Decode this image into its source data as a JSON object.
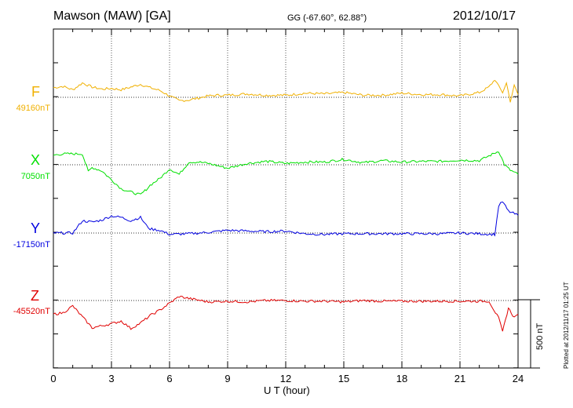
{
  "header": {
    "station": "Mawson (MAW)  [GA]",
    "coords": "GG (-67.60°,  62.88°)",
    "date": "2012/10/17"
  },
  "footer": {
    "plotted": "Plotted at 2012/11/17 01:25 UT",
    "scale": "500 nT"
  },
  "chart_data": {
    "type": "line",
    "xlabel": "U T (hour)",
    "xlim": [
      0,
      24
    ],
    "xticks": [
      "0",
      "3",
      "6",
      "9",
      "12",
      "15",
      "18",
      "21",
      "24"
    ],
    "grid": true,
    "scale_bar_nT": 500,
    "series": [
      {
        "name": "F",
        "baseline_label": "49160nT",
        "color": "#f0b000",
        "x": [
          0,
          0.5,
          1,
          1.5,
          2,
          2.5,
          3,
          3.5,
          4,
          4.5,
          5,
          5.5,
          6,
          6.5,
          7,
          7.5,
          8,
          8.5,
          9,
          10,
          11,
          12,
          13,
          14,
          15,
          16,
          17,
          18,
          19,
          20,
          21,
          22,
          22.5,
          22.8,
          23,
          23.2,
          23.4,
          23.6,
          23.8,
          24
        ],
        "y": [
          70,
          80,
          55,
          105,
          75,
          60,
          65,
          55,
          75,
          95,
          70,
          50,
          10,
          -25,
          -20,
          -5,
          10,
          15,
          15,
          25,
          15,
          15,
          30,
          25,
          35,
          15,
          15,
          30,
          20,
          20,
          10,
          35,
          75,
          130,
          80,
          35,
          105,
          -30,
          85,
          20
        ],
        "min_value": -30
      },
      {
        "name": "X",
        "baseline_label": "7050nT",
        "color": "#00e000",
        "x": [
          0,
          0.5,
          1,
          1.5,
          1.8,
          2,
          2.5,
          3,
          3.5,
          4,
          4.5,
          4.8,
          5,
          5.5,
          6,
          6.5,
          7,
          7.5,
          8,
          9,
          10,
          11,
          12,
          13,
          14,
          15,
          16,
          17,
          18,
          19,
          20,
          21,
          22,
          23,
          23.3,
          23.6,
          24
        ],
        "y": [
          70,
          80,
          80,
          80,
          -50,
          -20,
          -45,
          -110,
          -175,
          -200,
          -220,
          -180,
          -150,
          -100,
          -30,
          -70,
          20,
          20,
          10,
          -25,
          10,
          25,
          10,
          20,
          20,
          40,
          15,
          30,
          20,
          25,
          25,
          35,
          30,
          100,
          0,
          -40,
          -70
        ],
        "min_value": -220
      },
      {
        "name": "Y",
        "baseline_label": "-17150nT",
        "color": "#0000e0",
        "x": [
          0,
          1,
          1.5,
          2,
          2.5,
          3,
          3.5,
          4,
          4.5,
          4.8,
          5,
          5.5,
          6,
          7,
          8,
          9,
          10,
          11,
          12,
          13,
          14,
          15,
          16,
          17,
          18,
          19,
          20,
          21,
          22,
          22.8,
          23,
          23.2,
          23.5,
          24
        ],
        "y": [
          0,
          0,
          90,
          80,
          95,
          125,
          115,
          90,
          115,
          55,
          30,
          20,
          -10,
          -5,
          5,
          20,
          15,
          10,
          15,
          -5,
          -10,
          -5,
          -5,
          -5,
          -5,
          -5,
          -5,
          0,
          -5,
          -10,
          200,
          230,
          160,
          130
        ],
        "min_value": -10
      },
      {
        "name": "Z",
        "baseline_label": "-45520nT",
        "color": "#e00000",
        "x": [
          0,
          0.5,
          1,
          1.5,
          2,
          2.5,
          3,
          3.5,
          4,
          4.5,
          5,
          5.5,
          6,
          6.5,
          7,
          8,
          9,
          10,
          11,
          12,
          13,
          14,
          15,
          16,
          17,
          18,
          19,
          20,
          21,
          22,
          22.5,
          23,
          23.2,
          23.5,
          23.8,
          24
        ],
        "y": [
          -100,
          -90,
          -40,
          -120,
          -200,
          -185,
          -170,
          -150,
          -205,
          -165,
          -110,
          -70,
          -20,
          30,
          15,
          -10,
          -5,
          -10,
          0,
          0,
          -5,
          -5,
          -10,
          0,
          -5,
          -5,
          -5,
          -5,
          -5,
          -5,
          -5,
          -130,
          -230,
          -55,
          -125,
          -100
        ],
        "min_value": -230
      }
    ]
  }
}
